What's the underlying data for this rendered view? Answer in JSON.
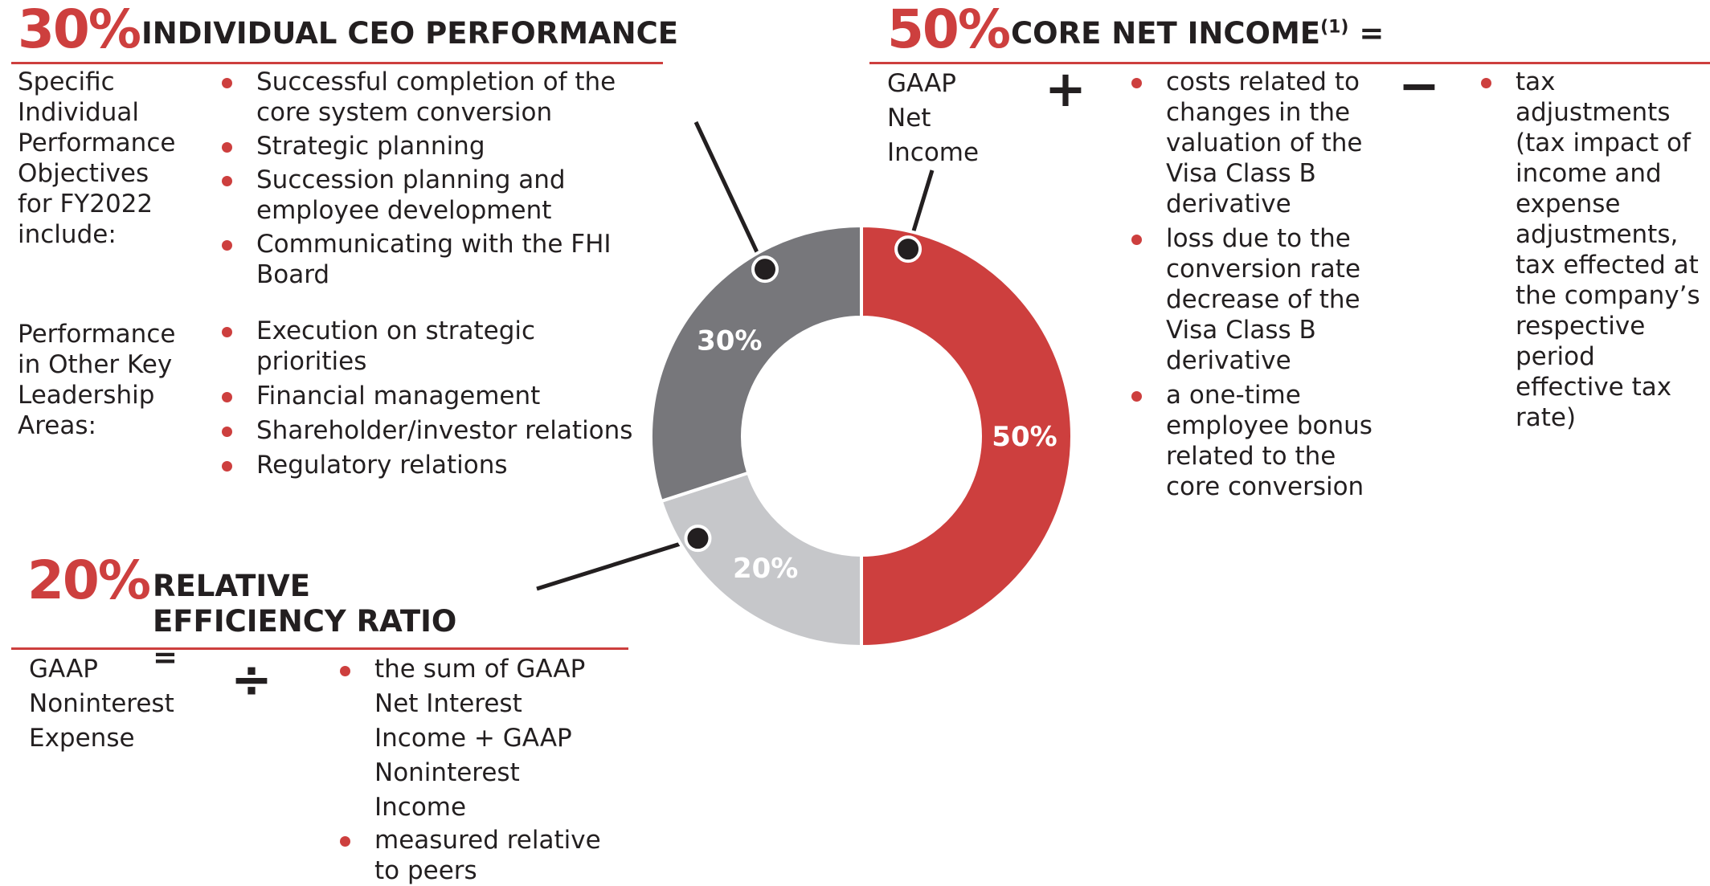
{
  "colors": {
    "accent": "#cd3f3e",
    "dark_gray": "#77777b",
    "light_gray": "#c6c7ca",
    "text": "#231f20"
  },
  "ceo": {
    "percent": "30%",
    "title": "INDIVIDUAL CEO PERFORMANCE",
    "specific_label": "Specific Individual Performance Objectives for FY2022 include:",
    "specific_items": [
      "Successful completion of the core system conversion",
      "Strategic planning",
      "Succession planning and employee development",
      "Communicating with the FHI Board"
    ],
    "other_label": "Performance in Other Key Leadership Areas:",
    "other_items": [
      "Execution on strategic priorities",
      "Financial management",
      "Shareholder/investor relations",
      "Regulatory relations"
    ]
  },
  "core": {
    "percent": "50%",
    "title": "CORE NET INCOME",
    "footnote": "(1)",
    "equals": "=",
    "base": "GAAP Net Income",
    "plus": "+",
    "minus": "−",
    "add_items": [
      "costs related to changes in the valuation of the Visa Class B derivative",
      "loss due to the conversion rate decrease of the Visa Class B derivative",
      "a one-time employee bonus related to the core conversion"
    ],
    "subtract_items": [
      "tax adjustments (tax impact of income and expense adjustments, tax effected at the company’s respective period effective tax rate)"
    ]
  },
  "efficiency": {
    "percent": "20%",
    "title": "RELATIVE EFFICIENCY RATIO =",
    "base": "GAAP Noninterest Expense",
    "divide": "÷",
    "items": [
      "the sum of GAAP Net Interest Income + GAAP Noninterest Income",
      "measured relative to peers"
    ]
  },
  "chart_data": {
    "type": "pie",
    "style": "donut",
    "categories": [
      "Core Net Income",
      "Relative Efficiency Ratio",
      "Individual CEO Performance"
    ],
    "values": [
      50,
      20,
      30
    ],
    "labels": [
      "50%",
      "20%",
      "30%"
    ],
    "colors": [
      "#cd3f3e",
      "#c6c7ca",
      "#77777b"
    ],
    "title": "",
    "legend": "none"
  }
}
